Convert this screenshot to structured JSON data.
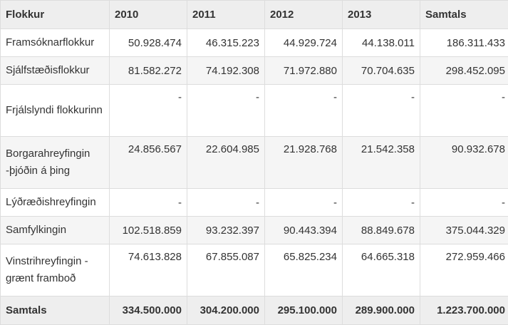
{
  "table": {
    "headers": [
      "Flokkur",
      "2010",
      "2011",
      "2012",
      "2013",
      "Samtals"
    ],
    "rows": [
      {
        "party": "Framsóknarflokkur",
        "values": [
          "50.928.474",
          "46.315.223",
          "44.929.724",
          "44.138.011",
          "186.311.433"
        ]
      },
      {
        "party": "Sjálfstæðisflokkur",
        "values": [
          "81.582.272",
          "74.192.308",
          "71.972.880",
          "70.704.635",
          "298.452.095"
        ]
      },
      {
        "party": "Frjálslyndi flokkurinn",
        "values": [
          "-",
          "-",
          "-",
          "-",
          "-"
        ]
      },
      {
        "party": "Borgarahreyfingin -þjóðin á þing",
        "values": [
          "24.856.567",
          "22.604.985",
          "21.928.768",
          "21.542.358",
          "90.932.678"
        ]
      },
      {
        "party": "Lýðræðishreyfingin",
        "values": [
          "-",
          "-",
          "-",
          "-",
          "-"
        ]
      },
      {
        "party": "Samfylkingin",
        "values": [
          "102.518.859",
          "93.232.397",
          "90.443.394",
          "88.849.678",
          "375.044.329"
        ]
      },
      {
        "party": "Vinstrihreyfingin -grænt framboð",
        "values": [
          "74.613.828",
          "67.855.087",
          "65.825.234",
          "64.665.318",
          "272.959.466"
        ]
      }
    ],
    "total": {
      "label": "Samtals",
      "values": [
        "334.500.000",
        "304.200.000",
        "295.100.000",
        "289.900.000",
        "1.223.700.000"
      ]
    }
  }
}
